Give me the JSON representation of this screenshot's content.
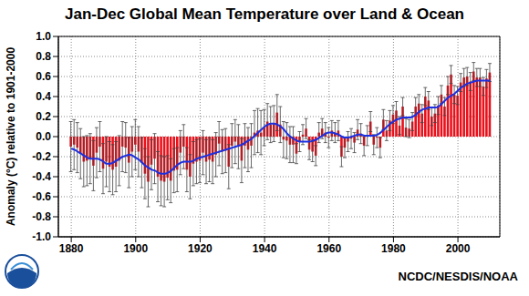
{
  "chart_data": {
    "type": "bar",
    "title": "Jan-Dec Global Mean Temperature over Land & Ocean",
    "ylabel": "Anomaly (°C) relative to 1901-2000",
    "annotations": [
      "NCDC/NESDIS/NOAA"
    ],
    "x": [
      1880,
      1881,
      1882,
      1883,
      1884,
      1885,
      1886,
      1887,
      1888,
      1889,
      1890,
      1891,
      1892,
      1893,
      1894,
      1895,
      1896,
      1897,
      1898,
      1899,
      1900,
      1901,
      1902,
      1903,
      1904,
      1905,
      1906,
      1907,
      1908,
      1909,
      1910,
      1911,
      1912,
      1913,
      1914,
      1915,
      1916,
      1917,
      1918,
      1919,
      1920,
      1921,
      1922,
      1923,
      1924,
      1925,
      1926,
      1927,
      1928,
      1929,
      1930,
      1931,
      1932,
      1933,
      1934,
      1935,
      1936,
      1937,
      1938,
      1939,
      1940,
      1941,
      1942,
      1943,
      1944,
      1945,
      1946,
      1947,
      1948,
      1949,
      1950,
      1951,
      1952,
      1953,
      1954,
      1955,
      1956,
      1957,
      1958,
      1959,
      1960,
      1961,
      1962,
      1963,
      1964,
      1965,
      1966,
      1967,
      1968,
      1969,
      1970,
      1971,
      1972,
      1973,
      1974,
      1975,
      1976,
      1977,
      1978,
      1979,
      1980,
      1981,
      1982,
      1983,
      1984,
      1985,
      1986,
      1987,
      1988,
      1989,
      1990,
      1991,
      1992,
      1993,
      1994,
      1995,
      1996,
      1997,
      1998,
      1999,
      2000,
      2001,
      2002,
      2003,
      2004,
      2005,
      2006,
      2007,
      2008,
      2009,
      2010
    ],
    "series": [
      {
        "type": "bar",
        "color": "#e8101a",
        "values": [
          -0.1,
          -0.08,
          -0.11,
          -0.17,
          -0.25,
          -0.24,
          -0.22,
          -0.29,
          -0.16,
          -0.1,
          -0.32,
          -0.25,
          -0.3,
          -0.33,
          -0.3,
          -0.24,
          -0.1,
          -0.11,
          -0.26,
          -0.15,
          -0.08,
          -0.15,
          -0.26,
          -0.37,
          -0.45,
          -0.28,
          -0.22,
          -0.4,
          -0.44,
          -0.45,
          -0.41,
          -0.44,
          -0.34,
          -0.33,
          -0.16,
          -0.1,
          -0.33,
          -0.4,
          -0.27,
          -0.25,
          -0.24,
          -0.16,
          -0.25,
          -0.23,
          -0.25,
          -0.18,
          -0.07,
          -0.15,
          -0.14,
          -0.3,
          -0.09,
          -0.05,
          -0.1,
          -0.24,
          -0.09,
          -0.13,
          -0.09,
          0.04,
          0.06,
          0.04,
          0.09,
          0.15,
          0.12,
          0.13,
          0.24,
          0.12,
          -0.03,
          -0.04,
          -0.08,
          -0.08,
          -0.17,
          -0.05,
          0.02,
          0.08,
          -0.13,
          -0.15,
          -0.19,
          0.04,
          0.08,
          0.04,
          -0.01,
          0.06,
          0.04,
          0.06,
          -0.2,
          -0.11,
          -0.05,
          -0.02,
          -0.06,
          0.07,
          0.03,
          -0.09,
          0.01,
          0.15,
          -0.08,
          -0.01,
          -0.11,
          0.17,
          0.06,
          0.16,
          0.22,
          0.26,
          0.11,
          0.3,
          0.09,
          0.08,
          0.15,
          0.3,
          0.33,
          0.23,
          0.4,
          0.36,
          0.2,
          0.23,
          0.31,
          0.42,
          0.3,
          0.51,
          0.62,
          0.42,
          0.41,
          0.54,
          0.59,
          0.6,
          0.55,
          0.65,
          0.59,
          0.59,
          0.5,
          0.58,
          0.64
        ],
        "error": [
          0.25,
          0.25,
          0.25,
          0.25,
          0.25,
          0.25,
          0.25,
          0.25,
          0.25,
          0.25,
          0.25,
          0.25,
          0.25,
          0.25,
          0.25,
          0.25,
          0.25,
          0.25,
          0.25,
          0.25,
          0.25,
          0.25,
          0.25,
          0.25,
          0.25,
          0.25,
          0.25,
          0.25,
          0.25,
          0.25,
          0.22,
          0.22,
          0.22,
          0.22,
          0.22,
          0.22,
          0.22,
          0.22,
          0.22,
          0.22,
          0.22,
          0.22,
          0.22,
          0.22,
          0.22,
          0.22,
          0.22,
          0.22,
          0.22,
          0.22,
          0.22,
          0.22,
          0.22,
          0.22,
          0.22,
          0.22,
          0.22,
          0.22,
          0.22,
          0.22,
          0.18,
          0.18,
          0.18,
          0.18,
          0.18,
          0.18,
          0.18,
          0.18,
          0.18,
          0.18,
          0.1,
          0.1,
          0.1,
          0.1,
          0.1,
          0.1,
          0.1,
          0.1,
          0.1,
          0.1,
          0.1,
          0.1,
          0.1,
          0.1,
          0.1,
          0.1,
          0.1,
          0.1,
          0.1,
          0.1,
          0.1,
          0.1,
          0.1,
          0.1,
          0.1,
          0.1,
          0.1,
          0.1,
          0.1,
          0.1,
          0.09,
          0.09,
          0.09,
          0.09,
          0.09,
          0.09,
          0.09,
          0.09,
          0.09,
          0.09,
          0.09,
          0.09,
          0.09,
          0.09,
          0.09,
          0.09,
          0.09,
          0.09,
          0.09,
          0.09,
          0.09,
          0.09,
          0.09,
          0.09,
          0.09,
          0.09,
          0.09,
          0.09,
          0.09,
          0.09,
          0.09
        ]
      },
      {
        "type": "line",
        "color": "#1c2fe0",
        "values": [
          -0.12,
          -0.13,
          -0.15,
          -0.17,
          -0.19,
          -0.21,
          -0.22,
          -0.22,
          -0.22,
          -0.23,
          -0.25,
          -0.27,
          -0.27,
          -0.26,
          -0.24,
          -0.22,
          -0.2,
          -0.19,
          -0.18,
          -0.19,
          -0.21,
          -0.23,
          -0.26,
          -0.29,
          -0.31,
          -0.33,
          -0.34,
          -0.36,
          -0.37,
          -0.37,
          -0.36,
          -0.34,
          -0.31,
          -0.28,
          -0.26,
          -0.25,
          -0.25,
          -0.25,
          -0.24,
          -0.22,
          -0.21,
          -0.2,
          -0.19,
          -0.18,
          -0.17,
          -0.16,
          -0.15,
          -0.14,
          -0.13,
          -0.12,
          -0.11,
          -0.1,
          -0.09,
          -0.08,
          -0.06,
          -0.04,
          -0.02,
          0.01,
          0.04,
          0.07,
          0.1,
          0.12,
          0.13,
          0.13,
          0.12,
          0.1,
          0.07,
          0.03,
          0.0,
          -0.02,
          -0.04,
          -0.05,
          -0.05,
          -0.05,
          -0.05,
          -0.04,
          -0.03,
          -0.01,
          0.01,
          0.03,
          0.04,
          0.04,
          0.03,
          0.02,
          0.0,
          -0.01,
          -0.01,
          0.0,
          0.01,
          0.02,
          0.02,
          0.01,
          0.01,
          0.01,
          0.01,
          0.02,
          0.04,
          0.07,
          0.1,
          0.13,
          0.15,
          0.17,
          0.18,
          0.19,
          0.19,
          0.19,
          0.2,
          0.22,
          0.25,
          0.27,
          0.28,
          0.29,
          0.29,
          0.29,
          0.3,
          0.33,
          0.36,
          0.39,
          0.41,
          0.43,
          0.46,
          0.49,
          0.51,
          0.53,
          0.54,
          0.55,
          0.56,
          0.56,
          0.56,
          0.56,
          0.56
        ]
      }
    ],
    "xlim": [
      1876,
      2013
    ],
    "xticks": [
      1880,
      1900,
      1920,
      1940,
      1960,
      1980,
      2000
    ],
    "ylim": [
      -1,
      1
    ],
    "yticks": [
      {
        "value": -1,
        "label": "-1.0"
      },
      -0.8,
      -0.6,
      -0.4,
      -0.2,
      {
        "value": 0,
        "label": "0.0"
      },
      0.2,
      0.4,
      0.6,
      0.8,
      {
        "value": 1,
        "label": "1.0"
      }
    ],
    "grid": true
  }
}
